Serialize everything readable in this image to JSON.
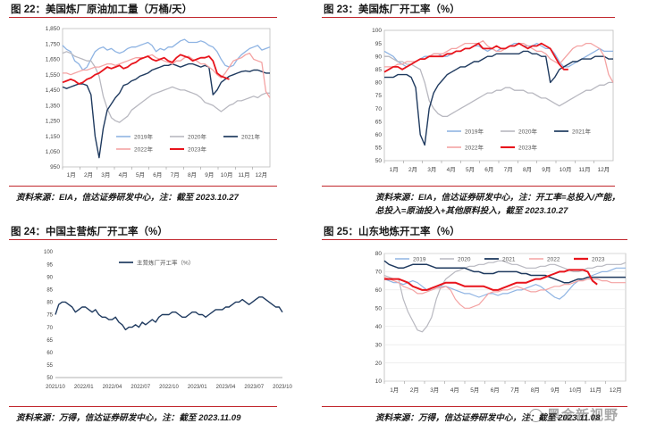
{
  "panels": [
    {
      "title": "图 22：美国炼厂原油加工量（万桶/天）",
      "source": "资料来源：EIA，信达证券研发中心，注：截至 2023.10.27"
    },
    {
      "title": "图 23：美国炼厂开工率（%）",
      "source": "资料来源：EIA，信达证券研发中心，注：开工率=总投入/产能，",
      "source2": "总投入=原油投入+其他原料投入，截至 2023.10.27"
    },
    {
      "title": "图 24：中国主营炼厂开工率（%）",
      "source": "资料来源：万得，信达证券研发中心，注：截至 2023.11.09"
    },
    {
      "title": "图 25：山东地炼开工率（%）",
      "source": "资料来源：万得，信达证券研发中心，注：截至 2023.11.08"
    }
  ],
  "watermark": "黑金新视野",
  "colors": {
    "2019": "#8fb4e3",
    "2020": "#b8b8c0",
    "2021": "#1f3a5f",
    "2022": "#f4a3a3",
    "2023": "#e8141c",
    "single": "#1f3a5f",
    "rule": "#c1272d"
  },
  "chart_data": [
    {
      "type": "line",
      "ylim": [
        950,
        1850
      ],
      "yticks": [
        "950",
        "1,050",
        "1,150",
        "1,250",
        "1,350",
        "1,450",
        "1,550",
        "1,650",
        "1,750",
        "1,850"
      ],
      "xticks": [
        "1月",
        "2月",
        "3月",
        "4月",
        "5月",
        "6月",
        "7月",
        "8月",
        "9月",
        "10月",
        "11月",
        "12月"
      ],
      "legend": [
        "2019年",
        "2020年",
        "2021年",
        "2022年",
        "2023年"
      ],
      "series": [
        {
          "name": "2019年",
          "values": [
            1740,
            1715,
            1700,
            1640,
            1620,
            1580,
            1600,
            1650,
            1700,
            1720,
            1730,
            1710,
            1720,
            1700,
            1690,
            1700,
            1720,
            1730,
            1730,
            1740,
            1750,
            1760,
            1740,
            1700,
            1720,
            1710,
            1730,
            1730,
            1750,
            1770,
            1780,
            1760,
            1760,
            1760,
            1770,
            1760,
            1740,
            1730,
            1700,
            1650,
            1610,
            1600,
            1610,
            1650,
            1680,
            1700,
            1720,
            1730,
            1740,
            1710,
            1720,
            1730
          ]
        },
        {
          "name": "2020年",
          "values": [
            1690,
            1700,
            1690,
            1670,
            1660,
            1650,
            1640,
            1640,
            1600,
            1540,
            1410,
            1330,
            1270,
            1250,
            1240,
            1260,
            1280,
            1320,
            1340,
            1360,
            1380,
            1400,
            1420,
            1430,
            1440,
            1450,
            1460,
            1470,
            1460,
            1450,
            1450,
            1440,
            1430,
            1420,
            1400,
            1370,
            1360,
            1350,
            1330,
            1310,
            1330,
            1350,
            1360,
            1380,
            1380,
            1390,
            1400,
            1410,
            1400,
            1420,
            1430,
            1430
          ]
        },
        {
          "name": "2021年",
          "values": [
            1470,
            1460,
            1470,
            1480,
            1490,
            1490,
            1480,
            1420,
            1150,
            1010,
            1200,
            1320,
            1360,
            1400,
            1430,
            1480,
            1490,
            1510,
            1520,
            1540,
            1550,
            1560,
            1580,
            1590,
            1600,
            1610,
            1610,
            1620,
            1610,
            1600,
            1610,
            1620,
            1620,
            1610,
            1600,
            1610,
            1600,
            1420,
            1450,
            1500,
            1520,
            1540,
            1550,
            1560,
            1570,
            1575,
            1570,
            1580,
            1580,
            1570,
            1560,
            1560
          ]
        },
        {
          "name": "2022年",
          "values": [
            1560,
            1560,
            1550,
            1560,
            1570,
            1580,
            1580,
            1590,
            1600,
            1600,
            1610,
            1620,
            1620,
            1610,
            1620,
            1630,
            1640,
            1650,
            1660,
            1660,
            1660,
            1670,
            1680,
            1660,
            1650,
            1640,
            1630,
            1620,
            1640,
            1640,
            1660,
            1670,
            1650,
            1640,
            1620,
            1620,
            1600,
            1580,
            1550,
            1530,
            1560,
            1600,
            1640,
            1650,
            1660,
            1680,
            1690,
            1650,
            1640,
            1630,
            1440,
            1400
          ]
        },
        {
          "name": "2023年",
          "values": [
            1500,
            1510,
            1520,
            1510,
            1490,
            1500,
            1520,
            1530,
            1550,
            1560,
            1580,
            1600,
            1590,
            1600,
            1610,
            1590,
            1600,
            1620,
            1630,
            1650,
            1660,
            1670,
            1650,
            1640,
            1650,
            1660,
            1640,
            1630,
            1660,
            1680,
            1670,
            1660,
            1640,
            1650,
            1660,
            1660,
            1670,
            1640,
            1560,
            1540,
            1530,
            1520
          ]
        }
      ]
    },
    {
      "type": "line",
      "ylim": [
        50,
        100
      ],
      "yticks": [
        "50",
        "55",
        "60",
        "65",
        "70",
        "75",
        "80",
        "85",
        "90",
        "95",
        "100"
      ],
      "xticks": [
        "1月",
        "2月",
        "3月",
        "4月",
        "5月",
        "6月",
        "7月",
        "8月",
        "9月",
        "10月",
        "11月",
        "12月"
      ],
      "legend": [
        "2019年",
        "2020年",
        "2021年",
        "2022年",
        "2023年"
      ],
      "series": [
        {
          "name": "2019年",
          "values": [
            92,
            91,
            90,
            88,
            87,
            86,
            87,
            88,
            89,
            90,
            90,
            91,
            91,
            90,
            90,
            91,
            92,
            92,
            93,
            93,
            94,
            94,
            93,
            92,
            93,
            92,
            93,
            93,
            94,
            95,
            95,
            94,
            94,
            94,
            95,
            94,
            93,
            93,
            91,
            88,
            86,
            86,
            87,
            88,
            89,
            90,
            91,
            92,
            93,
            92,
            92,
            92
          ]
        },
        {
          "name": "2020年",
          "values": [
            90,
            90,
            89,
            88,
            88,
            87,
            87,
            86,
            85,
            80,
            73,
            70,
            68,
            67,
            67,
            68,
            69,
            70,
            71,
            72,
            73,
            74,
            75,
            76,
            76,
            77,
            77,
            78,
            78,
            77,
            77,
            77,
            76,
            76,
            75,
            74,
            74,
            73,
            72,
            71,
            72,
            73,
            74,
            75,
            76,
            77,
            77,
            78,
            79,
            79,
            80,
            80
          ]
        },
        {
          "name": "2021年",
          "values": [
            82,
            82,
            82,
            83,
            83,
            83,
            82,
            78,
            60,
            56,
            70,
            76,
            79,
            81,
            83,
            84,
            85,
            86,
            86,
            87,
            88,
            88,
            89,
            90,
            90,
            91,
            91,
            91,
            91,
            91,
            91,
            92,
            92,
            91,
            91,
            90,
            90,
            80,
            82,
            85,
            86,
            87,
            88,
            88,
            89,
            89,
            89,
            90,
            90,
            90,
            89,
            89
          ]
        },
        {
          "name": "2022年",
          "values": [
            86,
            86,
            86,
            87,
            87,
            88,
            88,
            88,
            89,
            89,
            90,
            91,
            91,
            91,
            92,
            93,
            93,
            94,
            95,
            95,
            95,
            95,
            96,
            94,
            93,
            92,
            92,
            93,
            94,
            94,
            95,
            95,
            94,
            93,
            92,
            92,
            91,
            89,
            88,
            87,
            89,
            91,
            93,
            94,
            94,
            95,
            95,
            94,
            93,
            90,
            83,
            80
          ]
        },
        {
          "name": "2023年",
          "values": [
            84,
            85,
            86,
            86,
            85,
            86,
            87,
            88,
            89,
            89,
            90,
            90,
            90,
            90,
            91,
            91,
            92,
            92,
            93,
            93,
            94,
            95,
            93,
            93,
            93,
            94,
            93,
            93,
            94,
            94,
            95,
            94,
            93,
            94,
            94,
            95,
            94,
            93,
            90,
            87,
            85,
            85
          ]
        }
      ]
    },
    {
      "type": "line",
      "ylim": [
        50,
        100
      ],
      "yticks": [
        "50",
        "55",
        "60",
        "65",
        "70",
        "75",
        "80",
        "85",
        "90",
        "95",
        "100"
      ],
      "xticks": [
        "2021/10",
        "2022/01",
        "2022/04",
        "2022/07",
        "2022/10",
        "2023/01",
        "2023/04",
        "2023/07",
        "2023/10"
      ],
      "legend": [
        "主营炼厂开工率（%）"
      ],
      "series": [
        {
          "name": "主营炼厂开工率（%）",
          "values": [
            75,
            79,
            80,
            80,
            79,
            78,
            76,
            77,
            78,
            78,
            77,
            76,
            77,
            75,
            74,
            74,
            73,
            73,
            74,
            72,
            71,
            69,
            70,
            70,
            71,
            70,
            72,
            71,
            72,
            73,
            72,
            74,
            75,
            75,
            75,
            76,
            76,
            75,
            74,
            74,
            75,
            76,
            76,
            75,
            75,
            74,
            75,
            76,
            77,
            77,
            77,
            78,
            78,
            79,
            80,
            80,
            81,
            80,
            79,
            80,
            81,
            82,
            82,
            81,
            80,
            79,
            78,
            78,
            76
          ]
        }
      ]
    },
    {
      "type": "line",
      "ylim": [
        10,
        80
      ],
      "yticks": [
        "10",
        "20",
        "30",
        "40",
        "50",
        "60",
        "70",
        "80"
      ],
      "xticks": [
        "1月",
        "2月",
        "3月",
        "4月",
        "5月",
        "6月",
        "7月",
        "8月",
        "9月",
        "10月",
        "11月",
        "12月"
      ],
      "legend": [
        "2019",
        "2020",
        "2021",
        "2022",
        "2023"
      ],
      "series": [
        {
          "name": "2019",
          "values": [
            66,
            65,
            64,
            64,
            63,
            64,
            65,
            64,
            62,
            60,
            60,
            61,
            62,
            62,
            61,
            60,
            59,
            58,
            58,
            57,
            56,
            57,
            58,
            58,
            57,
            58,
            58,
            59,
            60,
            60,
            61,
            62,
            63,
            62,
            60,
            58,
            56,
            55,
            57,
            60,
            63,
            65,
            66,
            67,
            68,
            69,
            70,
            70,
            71,
            72,
            72,
            72
          ]
        },
        {
          "name": "2020",
          "values": [
            68,
            67,
            66,
            66,
            55,
            48,
            43,
            38,
            37,
            40,
            45,
            55,
            62,
            66,
            68,
            70,
            71,
            72,
            73,
            73,
            74,
            74,
            75,
            75,
            76,
            76,
            75,
            74,
            74,
            73,
            72,
            72,
            72,
            73,
            73,
            74,
            74,
            73,
            72,
            71,
            70,
            70,
            71,
            72,
            72,
            73,
            73,
            74,
            74,
            74,
            74,
            75
          ]
        },
        {
          "name": "2021",
          "values": [
            76,
            74,
            73,
            72,
            72,
            73,
            74,
            74,
            74,
            74,
            73,
            72,
            72,
            72,
            72,
            72,
            72,
            72,
            71,
            70,
            70,
            69,
            69,
            69,
            70,
            70,
            70,
            70,
            70,
            69,
            69,
            68,
            68,
            68,
            68,
            67,
            66,
            65,
            64,
            64,
            65,
            66,
            66,
            67,
            67,
            67,
            67,
            67,
            67,
            67,
            67,
            67
          ]
        },
        {
          "name": "2022",
          "values": [
            67,
            66,
            65,
            64,
            62,
            61,
            60,
            58,
            58,
            59,
            60,
            61,
            61,
            62,
            60,
            55,
            52,
            50,
            50,
            51,
            52,
            55,
            58,
            59,
            59,
            60,
            60,
            61,
            62,
            61,
            60,
            59,
            59,
            60,
            60,
            61,
            62,
            62,
            63,
            63,
            64,
            65,
            65,
            66,
            66,
            66,
            65,
            65,
            64,
            64,
            64,
            64
          ]
        },
        {
          "name": "2023",
          "values": [
            66,
            66,
            66,
            66,
            65,
            64,
            62,
            61,
            60,
            60,
            61,
            62,
            63,
            64,
            64,
            64,
            63,
            62,
            62,
            62,
            62,
            62,
            61,
            60,
            60,
            61,
            62,
            63,
            64,
            64,
            64,
            65,
            66,
            66,
            67,
            68,
            69,
            70,
            70,
            71,
            71,
            71,
            71,
            70,
            65,
            63
          ]
        }
      ]
    }
  ]
}
